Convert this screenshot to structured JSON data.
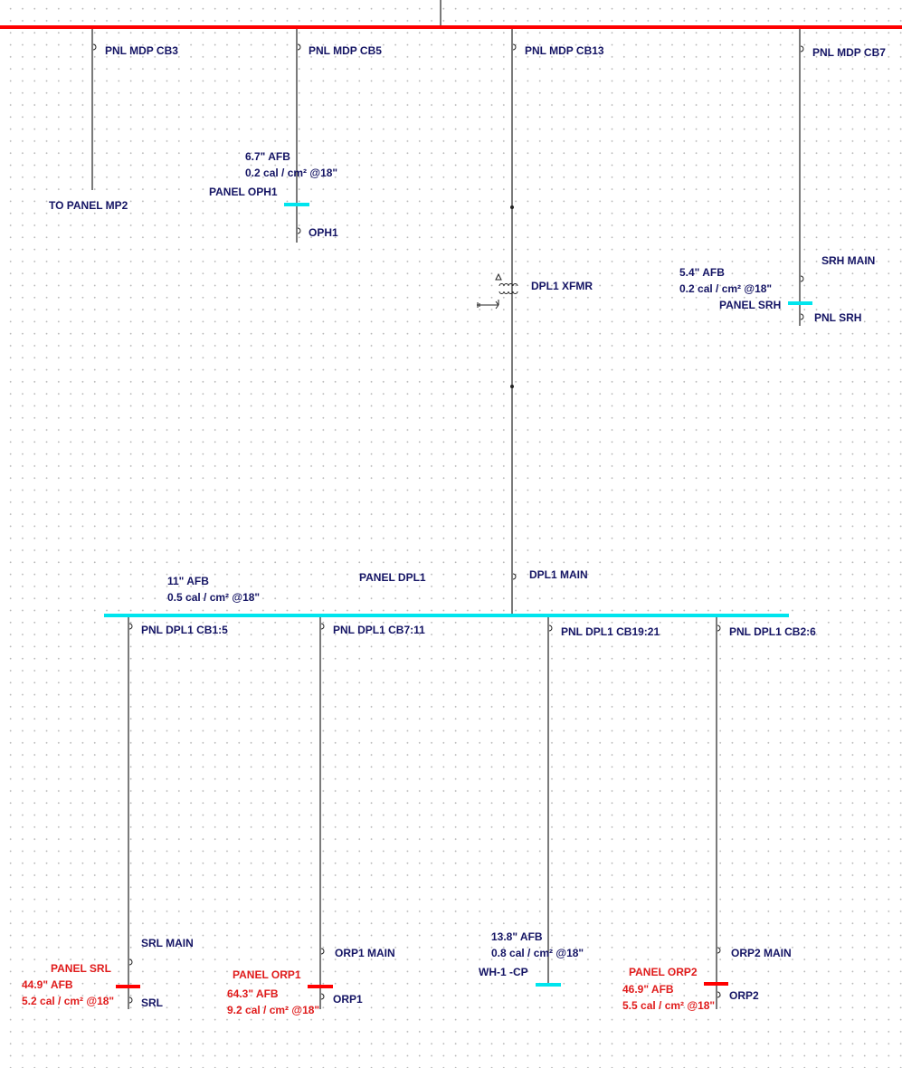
{
  "colors": {
    "main_bus": "#ff0000",
    "panel_bus_safe": "#00e5ee",
    "panel_bus_danger": "#ff0000",
    "label": "#141464",
    "danger_label": "#e01b1b"
  },
  "mdp": {
    "cb3": {
      "label": "PNL MDP CB3",
      "dest": "TO PANEL MP2"
    },
    "cb5": {
      "label": "PNL MDP CB5",
      "afb": "6.7\" AFB",
      "energy": "0.2 cal / cm² @18\"",
      "panel": "PANEL OPH1",
      "main": "OPH1"
    },
    "cb13": {
      "label": "PNL MDP CB13",
      "xfmr": "DPL1 XFMR",
      "main": "DPL1 MAIN"
    },
    "cb7": {
      "label": "PNL MDP CB7",
      "main": "SRH MAIN",
      "afb": "5.4\" AFB",
      "energy": "0.2 cal / cm² @18\"",
      "panel": "PANEL SRH",
      "sub": "PNL SRH"
    }
  },
  "dpl1": {
    "panel": "PANEL DPL1",
    "afb": "11\" AFB",
    "energy": "0.5 cal / cm² @18\"",
    "feeders": [
      {
        "label": "PNL DPL1 CB1:5",
        "main": "SRL MAIN",
        "panel": "PANEL SRL",
        "afb": "44.9\" AFB",
        "energy": "5.2 cal / cm² @18\"",
        "sub": "SRL",
        "status": "danger"
      },
      {
        "label": "PNL DPL1 CB7:11",
        "main": "ORP1 MAIN",
        "panel": "PANEL ORP1",
        "afb": "64.3\" AFB",
        "energy": "9.2 cal / cm² @18\"",
        "sub": "ORP1",
        "status": "danger"
      },
      {
        "label": "PNL DPL1 CB19:21",
        "panel": "WH-1 -CP",
        "afb": "13.8\" AFB",
        "energy": "0.8 cal / cm² @18\"",
        "status": "safe"
      },
      {
        "label": "PNL DPL1 CB2:6",
        "main": "ORP2 MAIN",
        "panel": "PANEL ORP2",
        "afb": "46.9\" AFB",
        "energy": "5.5 cal / cm² @18\"",
        "sub": "ORP2",
        "status": "danger"
      }
    ]
  }
}
